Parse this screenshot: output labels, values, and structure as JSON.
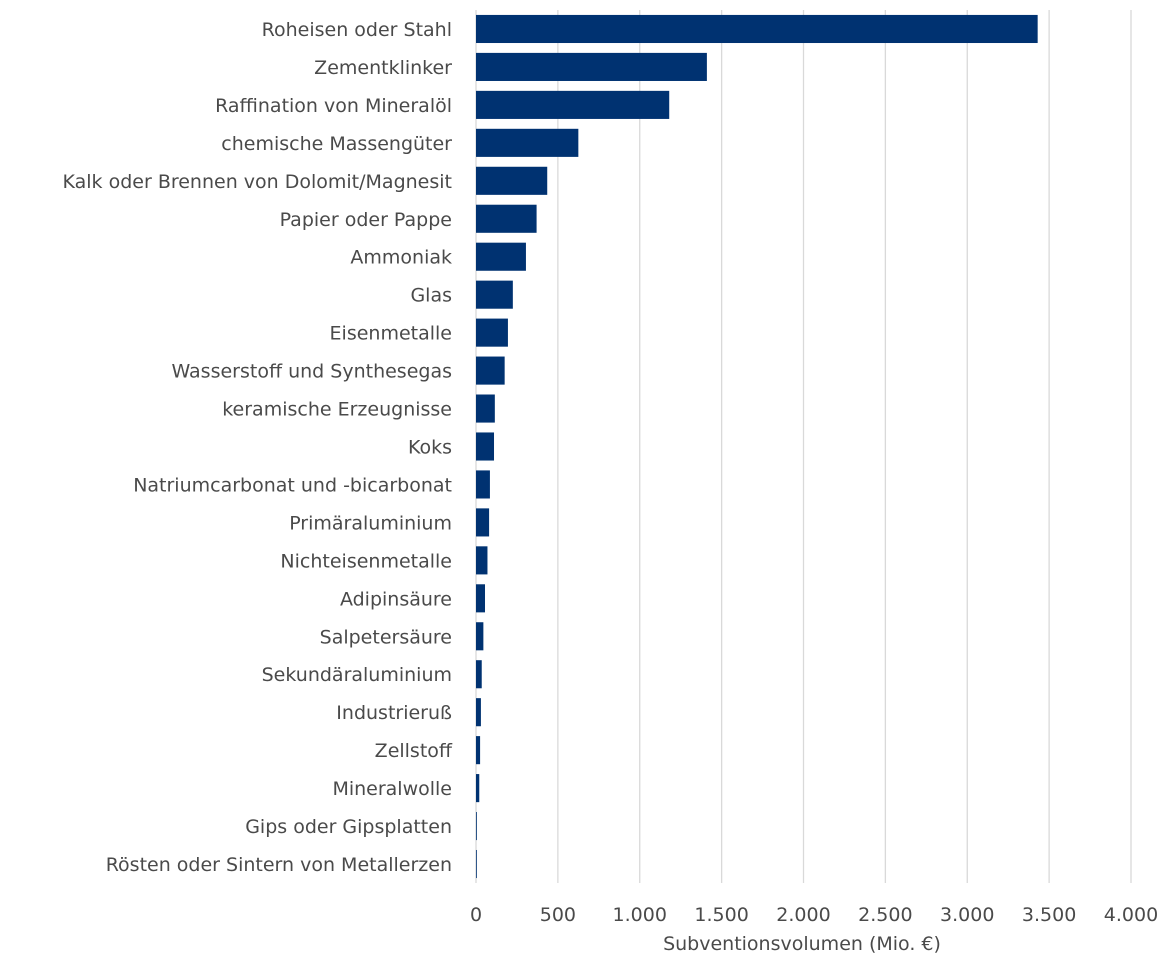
{
  "chart_data": {
    "type": "bar",
    "orientation": "horizontal",
    "title": "",
    "xlabel": "Subventionsvolumen (Mio. €)",
    "ylabel": "",
    "xlim": [
      0,
      4000
    ],
    "x_ticks": [
      0,
      500,
      1000,
      1500,
      2000,
      2500,
      3000,
      3500,
      4000
    ],
    "x_tick_labels": [
      "0",
      "500",
      "1.000",
      "1.500",
      "2.000",
      "2.500",
      "3.000",
      "3.500",
      "4.000"
    ],
    "grid": "vertical",
    "bar_color": "#003271",
    "categories": [
      "Roheisen oder Stahl",
      "Zementklinker",
      "Raffination von Mineralöl",
      "chemische Massengüter",
      "Kalk oder Brennen von Dolomit/Magnesit",
      "Papier oder Pappe",
      "Ammoniak",
      "Glas",
      "Eisenmetalle",
      "Wasserstoff und Synthesegas",
      "keramische Erzeugnisse",
      "Koks",
      "Natriumcarbonat und -bicarbonat",
      "Primäraluminium",
      "Nichteisenmetalle",
      "Adipinsäure",
      "Salpetersäure",
      "Sekundäraluminium",
      "Industrieruß",
      "Zellstoff",
      "Mineralwolle",
      "Gips oder Gipsplatten",
      "Rösten oder Sintern von Metallerzen"
    ],
    "values": [
      3430,
      1410,
      1180,
      625,
      435,
      370,
      305,
      225,
      195,
      175,
      115,
      110,
      85,
      80,
      70,
      55,
      45,
      35,
      30,
      25,
      20,
      5,
      3
    ]
  }
}
